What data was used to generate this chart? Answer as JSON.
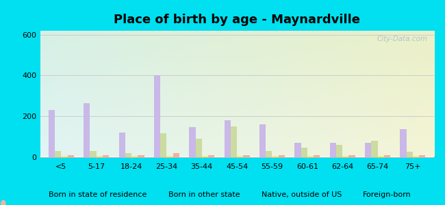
{
  "title": "Place of birth by age - Maynardville",
  "categories": [
    "<5",
    "5-17",
    "18-24",
    "25-34",
    "35-44",
    "45-54",
    "55-59",
    "60-61",
    "62-64",
    "65-74",
    "75+"
  ],
  "series": {
    "born_in_state": [
      230,
      265,
      120,
      400,
      145,
      180,
      160,
      70,
      70,
      68,
      135
    ],
    "born_other_state": [
      30,
      30,
      20,
      115,
      90,
      150,
      30,
      45,
      60,
      80,
      25
    ],
    "native_outside_us": [
      5,
      5,
      5,
      5,
      5,
      5,
      5,
      5,
      5,
      5,
      5
    ],
    "foreign_born": [
      10,
      8,
      8,
      20,
      8,
      8,
      8,
      8,
      8,
      8,
      8
    ]
  },
  "colors": {
    "born_in_state": "#c9b8e8",
    "born_other_state": "#ccdba0",
    "native_outside_us": "#f5f07a",
    "foreign_born": "#f5b0a0"
  },
  "legend_labels": [
    "Born in state of residence",
    "Born in other state",
    "Native, outside of US",
    "Foreign-born"
  ],
  "ylim": [
    0,
    620
  ],
  "yticks": [
    0,
    200,
    400,
    600
  ],
  "outer_bg": "#00e0f0",
  "watermark": "City-Data.com",
  "bar_width": 0.18,
  "title_fontsize": 13
}
